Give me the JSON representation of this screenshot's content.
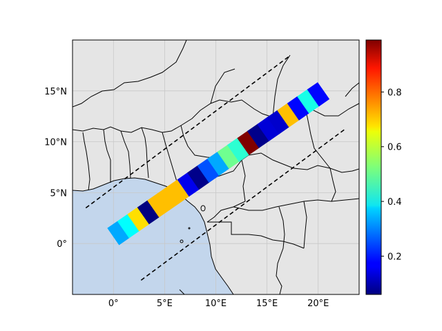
{
  "map": {
    "lon_range": [
      -4,
      24
    ],
    "lat_range": [
      -5,
      20
    ],
    "land_color": "#e5e5e5",
    "ocean_color": "#c3d6ec",
    "coastline_color": "#000000",
    "gridlines": true,
    "x_ticks": [
      {
        "value": 0,
        "label": "0°"
      },
      {
        "value": 5,
        "label": "5°E"
      },
      {
        "value": 10,
        "label": "10°E"
      },
      {
        "value": 15,
        "label": "15°E"
      },
      {
        "value": 20,
        "label": "20°E"
      }
    ],
    "y_ticks": [
      {
        "value": 0,
        "label": "0°"
      },
      {
        "value": 5,
        "label": "5°N"
      },
      {
        "value": 10,
        "label": "10°N"
      },
      {
        "value": 15,
        "label": "15°N"
      }
    ]
  },
  "swath": {
    "center_start": [
      0,
      0.7
    ],
    "center_end": [
      20.5,
      15
    ],
    "cell_values": [
      0.33,
      0.41,
      0.67,
      0.05,
      0.7,
      0.7,
      0.7,
      0.16,
      0.07,
      0.25,
      0.33,
      0.51,
      0.45,
      0.99,
      0.07,
      0.14,
      0.13,
      0.7,
      0.18,
      0.43,
      0.18
    ]
  },
  "bounds": [
    {
      "start": [
        -2.7,
        3.5
      ],
      "end": [
        17.3,
        18.5
      ]
    },
    {
      "start": [
        2.7,
        -3.6
      ],
      "end": [
        22.7,
        11.3
      ]
    }
  ],
  "colorbar": {
    "colormap": "jet",
    "vmin": 0.06,
    "vmax": 0.99,
    "ticks": [
      {
        "value": 0.2,
        "label": "0.2"
      },
      {
        "value": 0.4,
        "label": "0.4"
      },
      {
        "value": 0.6,
        "label": "0.6"
      },
      {
        "value": 0.8,
        "label": "0.8"
      }
    ]
  }
}
